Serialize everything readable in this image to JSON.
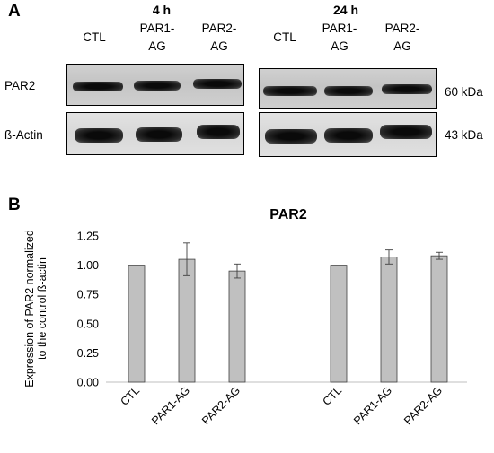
{
  "panel_a": {
    "letter": "A",
    "groups": [
      {
        "time": "4 h",
        "lanes": [
          "CTL",
          "PAR1-\nAG",
          "PAR2-\nAG"
        ]
      },
      {
        "time": "24 h",
        "lanes": [
          "CTL",
          "PAR1-\nAG",
          "PAR2-\nAG"
        ]
      }
    ],
    "rows": [
      {
        "label": "PAR2",
        "kda": "60 kDa"
      },
      {
        "label": "ß-Actin",
        "kda": "43 kDa"
      }
    ]
  },
  "panel_b": {
    "letter": "B"
  },
  "chart_data": {
    "type": "bar",
    "title": "PAR2",
    "ylabel": "Expression of PAR2 normalized\nto the control ß-actin",
    "xlabel": "",
    "ylim": [
      0,
      1.25
    ],
    "yticks": [
      "0.00",
      "0.25",
      "0.50",
      "0.75",
      "1.00",
      "1.25"
    ],
    "categories": [
      "CTL",
      "PAR1-AG",
      "PAR2-AG",
      "CTL",
      "PAR1-AG",
      "PAR2-AG"
    ],
    "values": [
      1.0,
      1.05,
      0.95,
      1.0,
      1.07,
      1.08
    ],
    "error": [
      0,
      0.14,
      0.06,
      0,
      0.06,
      0.03
    ],
    "bar_color": "#c0c0c0",
    "grid": false,
    "legend": "none"
  }
}
